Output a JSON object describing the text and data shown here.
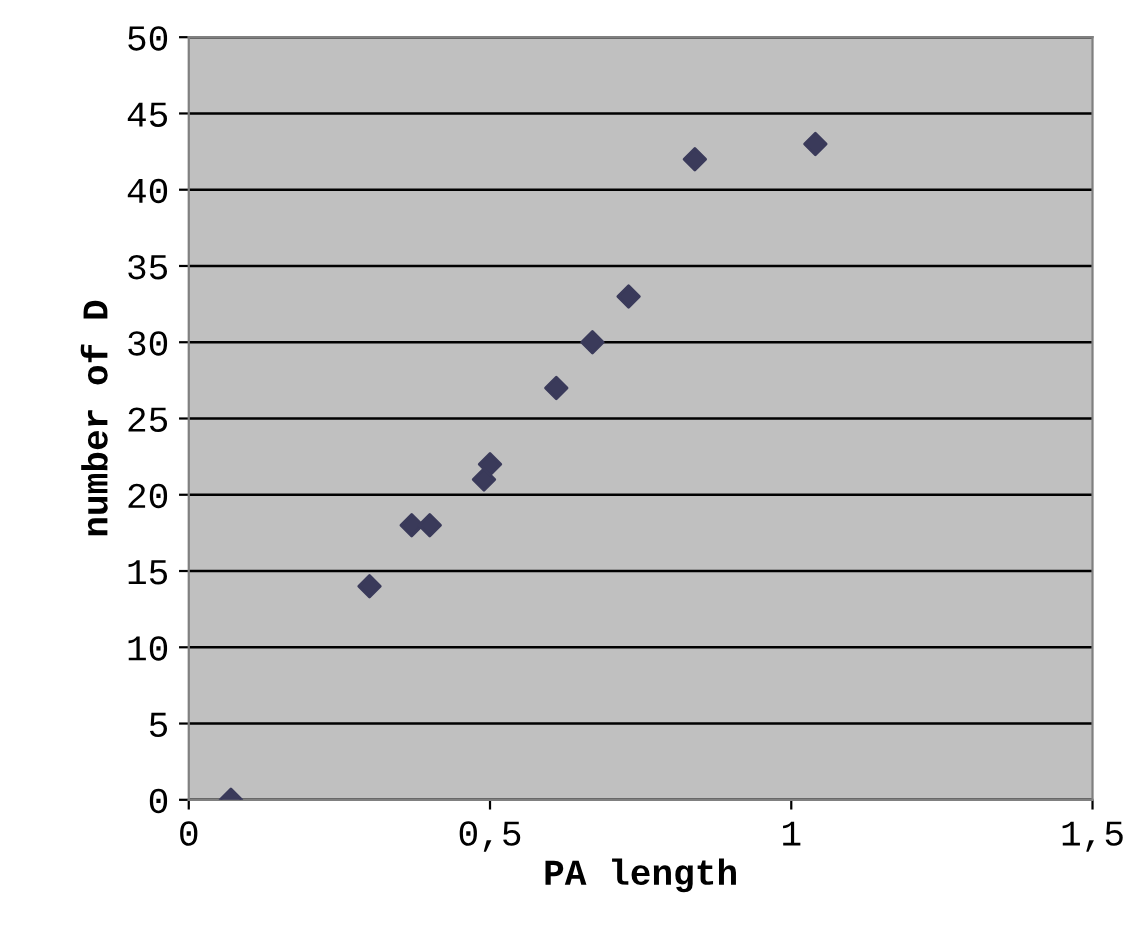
{
  "chart_data": {
    "type": "scatter",
    "xlabel": "PA length",
    "ylabel": "number of D",
    "x": [
      0.07,
      0.3,
      0.37,
      0.4,
      0.49,
      0.5,
      0.61,
      0.67,
      0.73,
      0.84,
      1.04
    ],
    "series": [
      {
        "color": "#3a3a5a",
        "values": [
          0,
          14,
          18,
          18,
          21,
          22,
          27,
          30,
          33,
          42,
          43
        ]
      }
    ],
    "xlim": [
      0,
      1.5
    ],
    "ylim": [
      0,
      50
    ],
    "xticks": [
      0,
      {
        "value": 0.5,
        "label": "0,5"
      },
      1,
      {
        "value": 1.5,
        "label": "1,5"
      }
    ],
    "yticks": [
      0,
      5,
      10,
      15,
      20,
      25,
      30,
      35,
      40,
      45,
      50
    ],
    "grid": "y",
    "marker": "diamond",
    "legend": false
  }
}
